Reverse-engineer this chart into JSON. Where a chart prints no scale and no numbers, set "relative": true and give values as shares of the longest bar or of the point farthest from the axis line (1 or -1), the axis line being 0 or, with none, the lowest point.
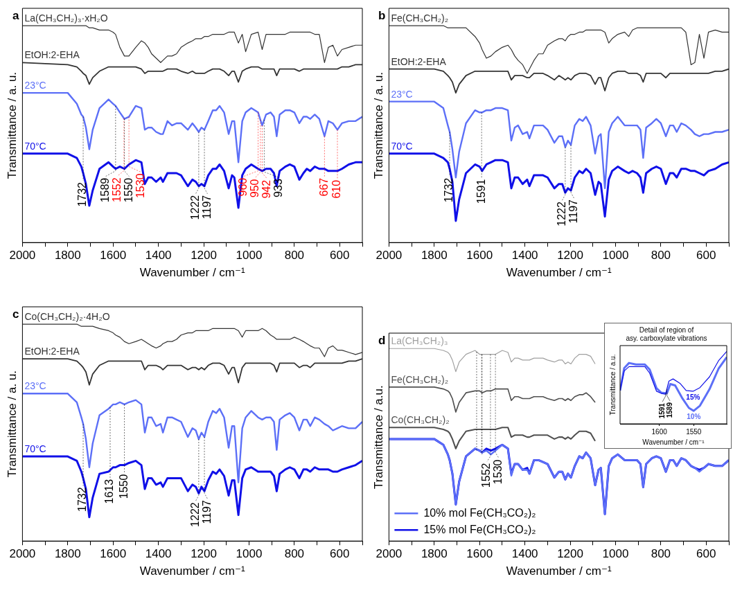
{
  "chart_data": [
    {
      "type": "line",
      "title": "a",
      "xlabel": "Wavenumber / cm⁻¹",
      "ylabel": "Transmittance / a. u.",
      "relative": true,
      "xlim": [
        2000,
        500
      ],
      "xticks": [
        2000,
        {
          "value": 1900,
          "label": null
        },
        1800,
        {
          "value": 1700,
          "label": null
        },
        1600,
        {
          "value": 1500,
          "label": null
        },
        1400,
        {
          "value": 1300,
          "label": null
        },
        1200,
        {
          "value": 1100,
          "label": null
        },
        1000,
        {
          "value": 900,
          "label": null
        },
        800,
        {
          "value": 700,
          "label": null
        },
        600,
        {
          "value": 500,
          "label": null
        }
      ],
      "x": [
        2000,
        1800,
        1760,
        1740,
        1732,
        1720,
        1705,
        1690,
        1660,
        1620,
        1600,
        1589,
        1570,
        1550,
        1530,
        1500,
        1475,
        1460,
        1445,
        1430,
        1410,
        1390,
        1380,
        1360,
        1340,
        1320,
        1300,
        1270,
        1250,
        1235,
        1222,
        1210,
        1197,
        1180,
        1160,
        1145,
        1130,
        1110,
        1090,
        1075,
        1065,
        1047,
        1030,
        1015,
        990,
        960,
        942,
        925,
        905,
        890,
        878,
        865,
        840,
        820,
        800,
        778,
        760,
        745,
        730,
        710,
        690,
        667,
        650,
        630,
        610,
        590,
        560,
        530,
        500
      ],
      "series": [
        {
          "name": "La(CH₃CH₂)₃·xH₂O",
          "color": "#333333",
          "values": [
            1.0,
            1.0,
            1.0,
            1.0,
            1.0,
            1.0,
            0.99,
            0.99,
            0.98,
            0.98,
            0.97,
            0.96,
            0.9,
            0.86,
            0.86,
            0.9,
            0.93,
            0.92,
            0.9,
            0.87,
            0.85,
            0.83,
            0.84,
            0.86,
            0.86,
            0.87,
            0.9,
            0.92,
            0.93,
            0.94,
            0.94,
            0.94,
            0.95,
            0.95,
            0.96,
            0.96,
            0.96,
            0.96,
            0.97,
            0.97,
            0.97,
            0.92,
            0.96,
            0.88,
            0.96,
            0.97,
            0.89,
            0.96,
            0.96,
            0.96,
            0.96,
            0.96,
            0.96,
            0.97,
            0.97,
            0.97,
            0.97,
            0.97,
            0.97,
            0.96,
            0.96,
            0.83,
            0.9,
            0.91,
            0.86,
            0.89,
            0.9,
            0.91,
            0.91
          ]
        },
        {
          "name": "EtOH:2-EHA",
          "color": "#333333",
          "values": [
            0.83,
            0.82,
            0.81,
            0.79,
            0.78,
            0.77,
            0.73,
            0.76,
            0.79,
            0.81,
            0.81,
            0.81,
            0.81,
            0.81,
            0.81,
            0.81,
            0.8,
            0.78,
            0.79,
            0.79,
            0.79,
            0.79,
            0.79,
            0.8,
            0.8,
            0.8,
            0.79,
            0.78,
            0.79,
            0.78,
            0.78,
            0.78,
            0.78,
            0.79,
            0.8,
            0.8,
            0.8,
            0.79,
            0.77,
            0.79,
            0.79,
            0.74,
            0.79,
            0.8,
            0.81,
            0.81,
            0.8,
            0.8,
            0.8,
            0.8,
            0.77,
            0.8,
            0.8,
            0.8,
            0.8,
            0.79,
            0.8,
            0.8,
            0.8,
            0.8,
            0.8,
            0.8,
            0.8,
            0.8,
            0.8,
            0.81,
            0.81,
            0.82,
            0.82
          ]
        },
        {
          "name": "23°C",
          "color": "#5c6ff7",
          "values": [
            0.69,
            0.69,
            0.64,
            0.59,
            0.58,
            0.53,
            0.43,
            0.52,
            0.62,
            0.66,
            0.64,
            0.63,
            0.6,
            0.57,
            0.58,
            0.63,
            0.62,
            0.52,
            0.53,
            0.53,
            0.51,
            0.5,
            0.5,
            0.56,
            0.54,
            0.55,
            0.55,
            0.52,
            0.55,
            0.53,
            0.51,
            0.53,
            0.52,
            0.56,
            0.61,
            0.61,
            0.63,
            0.6,
            0.5,
            0.56,
            0.56,
            0.37,
            0.56,
            0.6,
            0.62,
            0.6,
            0.54,
            0.59,
            0.6,
            0.58,
            0.49,
            0.59,
            0.61,
            0.61,
            0.6,
            0.55,
            0.58,
            0.58,
            0.57,
            0.59,
            0.57,
            0.49,
            0.56,
            0.55,
            0.52,
            0.55,
            0.56,
            0.56,
            0.58
          ]
        },
        {
          "name": "70°C",
          "color": "#1010e8",
          "values": [
            0.41,
            0.41,
            0.39,
            0.35,
            0.32,
            0.27,
            0.17,
            0.24,
            0.34,
            0.37,
            0.35,
            0.34,
            0.35,
            0.34,
            0.36,
            0.38,
            0.37,
            0.27,
            0.3,
            0.3,
            0.28,
            0.3,
            0.28,
            0.32,
            0.32,
            0.32,
            0.31,
            0.26,
            0.29,
            0.28,
            0.26,
            0.27,
            0.26,
            0.31,
            0.34,
            0.34,
            0.36,
            0.33,
            0.25,
            0.31,
            0.3,
            0.16,
            0.31,
            0.34,
            0.36,
            0.34,
            0.33,
            0.34,
            0.34,
            0.32,
            0.26,
            0.33,
            0.35,
            0.36,
            0.35,
            0.29,
            0.32,
            0.34,
            0.33,
            0.35,
            0.34,
            0.34,
            0.33,
            0.33,
            0.33,
            0.34,
            0.36,
            0.37,
            0.37
          ]
        }
      ],
      "ref_lines": [
        {
          "axis": "x",
          "value": 1732,
          "label": "1732",
          "color": "#000000",
          "line_style": "dotted"
        },
        {
          "axis": "x",
          "value": 1589,
          "label": "1589",
          "color": "#000000",
          "line_style": "dotted"
        },
        {
          "axis": "x",
          "value": 1552,
          "label": "1552",
          "color": "#ff0000",
          "line_style": "dotted"
        },
        {
          "axis": "x",
          "value": 1550,
          "label": "1550",
          "color": "#000000",
          "line_style": "dotted"
        },
        {
          "axis": "x",
          "value": 1530,
          "label": "1530",
          "color": "#ff0000",
          "line_style": "dotted"
        },
        {
          "axis": "x",
          "value": 1222,
          "label": "1222",
          "color": "#000000",
          "line_style": "dotted"
        },
        {
          "axis": "x",
          "value": 1197,
          "label": "1197",
          "color": "#000000",
          "line_style": "dotted"
        },
        {
          "axis": "x",
          "value": 960,
          "label": "960",
          "color": "#ff0000",
          "line_style": "dotted"
        },
        {
          "axis": "x",
          "value": 950,
          "label": "950",
          "color": "#ff0000",
          "line_style": "dotted"
        },
        {
          "axis": "x",
          "value": 942,
          "label": "942",
          "color": "#ff0000",
          "line_style": "dotted"
        },
        {
          "axis": "x",
          "value": 933,
          "label": "933",
          "color": "#000000",
          "line_style": "dotted"
        },
        {
          "axis": "x",
          "value": 667,
          "label": "667",
          "color": "#ff0000",
          "line_style": "dotted"
        },
        {
          "axis": "x",
          "value": 610,
          "label": "610",
          "color": "#ff0000",
          "line_style": "dotted"
        }
      ]
    },
    {
      "type": "line",
      "title": "b",
      "xlabel": "Wavenumber / cm⁻¹",
      "ylabel": "Transmittance / a. u.",
      "relative": true,
      "xlim": [
        2000,
        500
      ],
      "xticks": [
        2000,
        {
          "value": 1900,
          "label": null
        },
        1800,
        {
          "value": 1700,
          "label": null
        },
        1600,
        {
          "value": 1500,
          "label": null
        },
        1400,
        {
          "value": 1300,
          "label": null
        },
        1200,
        {
          "value": 1100,
          "label": null
        },
        1000,
        {
          "value": 900,
          "label": null
        },
        800,
        {
          "value": 700,
          "label": null
        },
        600,
        {
          "value": 500,
          "label": null
        }
      ],
      "x": [
        2000,
        1800,
        1760,
        1740,
        1732,
        1720,
        1705,
        1690,
        1660,
        1620,
        1600,
        1589,
        1570,
        1550,
        1530,
        1500,
        1475,
        1460,
        1445,
        1430,
        1410,
        1390,
        1380,
        1360,
        1340,
        1320,
        1300,
        1270,
        1250,
        1235,
        1222,
        1210,
        1197,
        1180,
        1160,
        1145,
        1130,
        1110,
        1090,
        1075,
        1065,
        1047,
        1030,
        1015,
        990,
        960,
        942,
        925,
        905,
        890,
        878,
        865,
        840,
        820,
        800,
        778,
        760,
        745,
        730,
        710,
        690,
        667,
        650,
        630,
        610,
        590,
        560,
        530,
        500
      ],
      "series": [
        {
          "name": "Fe(CH₃CH₂)₂",
          "color": "#333333",
          "values": [
            1.0,
            1.0,
            1.0,
            0.99,
            0.99,
            0.99,
            0.99,
            0.99,
            0.99,
            0.95,
            0.92,
            0.89,
            0.85,
            0.86,
            0.88,
            0.9,
            0.91,
            0.89,
            0.86,
            0.84,
            0.82,
            0.78,
            0.8,
            0.84,
            0.87,
            0.87,
            0.91,
            0.93,
            0.94,
            0.94,
            0.93,
            0.95,
            0.96,
            0.96,
            0.97,
            0.97,
            0.98,
            0.98,
            0.98,
            0.98,
            0.98,
            0.97,
            0.92,
            0.94,
            0.96,
            0.97,
            0.95,
            0.98,
            0.99,
            0.99,
            0.99,
            0.99,
            0.99,
            0.99,
            0.99,
            0.99,
            0.99,
            0.99,
            0.99,
            0.99,
            0.97,
            0.82,
            0.83,
            0.96,
            0.85,
            0.97,
            0.98,
            0.97,
            0.97
          ]
        },
        {
          "name": "EtOH:2-EHA",
          "color": "#333333",
          "values": [
            0.8,
            0.8,
            0.79,
            0.77,
            0.76,
            0.74,
            0.69,
            0.73,
            0.77,
            0.79,
            0.79,
            0.79,
            0.79,
            0.79,
            0.79,
            0.79,
            0.79,
            0.75,
            0.77,
            0.77,
            0.77,
            0.76,
            0.76,
            0.78,
            0.78,
            0.78,
            0.77,
            0.75,
            0.77,
            0.76,
            0.75,
            0.76,
            0.75,
            0.77,
            0.78,
            0.78,
            0.78,
            0.77,
            0.73,
            0.76,
            0.76,
            0.7,
            0.76,
            0.78,
            0.79,
            0.79,
            0.78,
            0.78,
            0.78,
            0.77,
            0.74,
            0.78,
            0.78,
            0.78,
            0.78,
            0.76,
            0.78,
            0.78,
            0.78,
            0.78,
            0.78,
            0.78,
            0.78,
            0.78,
            0.78,
            0.78,
            0.79,
            0.79,
            0.8
          ]
        },
        {
          "name": "23°C",
          "color": "#5c6ff7",
          "values": [
            0.65,
            0.65,
            0.62,
            0.54,
            0.51,
            0.43,
            0.3,
            0.42,
            0.55,
            0.61,
            0.6,
            0.6,
            0.61,
            0.61,
            0.62,
            0.62,
            0.61,
            0.47,
            0.53,
            0.54,
            0.5,
            0.51,
            0.48,
            0.54,
            0.54,
            0.54,
            0.52,
            0.46,
            0.49,
            0.49,
            0.44,
            0.47,
            0.45,
            0.54,
            0.57,
            0.56,
            0.58,
            0.54,
            0.41,
            0.49,
            0.5,
            0.25,
            0.51,
            0.55,
            0.58,
            0.54,
            0.54,
            0.54,
            0.54,
            0.52,
            0.39,
            0.53,
            0.55,
            0.57,
            0.55,
            0.49,
            0.54,
            0.54,
            0.51,
            0.55,
            0.54,
            0.52,
            0.5,
            0.49,
            0.5,
            0.5,
            0.51,
            0.51,
            0.52
          ]
        },
        {
          "name": "70°C",
          "color": "#1010e8",
          "values": [
            0.41,
            0.41,
            0.39,
            0.37,
            0.34,
            0.28,
            0.1,
            0.2,
            0.32,
            0.36,
            0.35,
            0.33,
            0.36,
            0.37,
            0.38,
            0.38,
            0.37,
            0.25,
            0.3,
            0.3,
            0.27,
            0.29,
            0.26,
            0.31,
            0.31,
            0.31,
            0.3,
            0.25,
            0.27,
            0.27,
            0.23,
            0.25,
            0.24,
            0.3,
            0.33,
            0.32,
            0.34,
            0.32,
            0.22,
            0.28,
            0.27,
            0.12,
            0.29,
            0.33,
            0.35,
            0.33,
            0.32,
            0.33,
            0.32,
            0.3,
            0.23,
            0.32,
            0.34,
            0.35,
            0.34,
            0.27,
            0.32,
            0.32,
            0.3,
            0.34,
            0.34,
            0.33,
            0.33,
            0.32,
            0.31,
            0.33,
            0.34,
            0.36,
            0.37
          ]
        }
      ],
      "ref_lines": [
        {
          "axis": "x",
          "value": 1732,
          "label": "1732",
          "color": "#000000",
          "line_style": "dotted"
        },
        {
          "axis": "x",
          "value": 1591,
          "label": "1591",
          "color": "#000000",
          "line_style": "dotted"
        },
        {
          "axis": "x",
          "value": 1222,
          "label": "1222",
          "color": "#000000",
          "line_style": "dotted"
        },
        {
          "axis": "x",
          "value": 1197,
          "label": "1197",
          "color": "#000000",
          "line_style": "dotted"
        }
      ]
    },
    {
      "type": "line",
      "title": "c",
      "xlabel": "Wavenumber / cm⁻¹",
      "ylabel": "Transmittance / a. u.",
      "relative": true,
      "xlim": [
        2000,
        500
      ],
      "xticks": [
        2000,
        {
          "value": 1900,
          "label": null
        },
        1800,
        {
          "value": 1700,
          "label": null
        },
        1600,
        {
          "value": 1500,
          "label": null
        },
        1400,
        {
          "value": 1300,
          "label": null
        },
        1200,
        {
          "value": 1100,
          "label": null
        },
        1000,
        {
          "value": 900,
          "label": null
        },
        800,
        {
          "value": 700,
          "label": null
        },
        600,
        {
          "value": 500,
          "label": null
        }
      ],
      "x": [
        2000,
        1800,
        1760,
        1740,
        1732,
        1720,
        1705,
        1690,
        1660,
        1620,
        1600,
        1589,
        1570,
        1550,
        1530,
        1500,
        1475,
        1460,
        1445,
        1430,
        1410,
        1390,
        1380,
        1360,
        1340,
        1320,
        1300,
        1270,
        1250,
        1235,
        1222,
        1210,
        1197,
        1180,
        1160,
        1145,
        1130,
        1110,
        1090,
        1075,
        1065,
        1047,
        1030,
        1015,
        990,
        960,
        942,
        925,
        905,
        890,
        878,
        865,
        840,
        820,
        800,
        778,
        760,
        745,
        730,
        710,
        690,
        667,
        650,
        630,
        610,
        590,
        560,
        530,
        500
      ],
      "series": [
        {
          "name": "Co(CH₃CH₂)₂·4H₂O",
          "color": "#333333",
          "values": [
            1.0,
            1.0,
            1.0,
            0.99,
            0.99,
            0.99,
            0.99,
            0.99,
            0.98,
            0.97,
            0.96,
            0.95,
            0.94,
            0.92,
            0.91,
            0.92,
            0.93,
            0.92,
            0.91,
            0.9,
            0.89,
            0.9,
            0.91,
            0.92,
            0.92,
            0.93,
            0.95,
            0.96,
            0.96,
            0.97,
            0.97,
            0.97,
            0.97,
            0.97,
            0.98,
            0.98,
            0.98,
            0.98,
            0.98,
            0.98,
            0.98,
            0.97,
            0.94,
            0.97,
            0.97,
            0.97,
            0.98,
            0.97,
            0.95,
            0.94,
            0.93,
            0.93,
            0.93,
            0.93,
            0.94,
            0.93,
            0.92,
            0.91,
            0.9,
            0.89,
            0.89,
            0.85,
            0.89,
            0.9,
            0.88,
            0.88,
            0.87,
            0.86,
            0.87
          ]
        },
        {
          "name": "EtOH:2-EHA",
          "color": "#333333",
          "values": [
            0.84,
            0.84,
            0.83,
            0.81,
            0.8,
            0.78,
            0.72,
            0.77,
            0.81,
            0.83,
            0.83,
            0.83,
            0.83,
            0.83,
            0.83,
            0.83,
            0.83,
            0.79,
            0.81,
            0.81,
            0.81,
            0.8,
            0.79,
            0.81,
            0.81,
            0.81,
            0.81,
            0.79,
            0.8,
            0.8,
            0.79,
            0.8,
            0.79,
            0.81,
            0.82,
            0.82,
            0.82,
            0.81,
            0.77,
            0.8,
            0.8,
            0.73,
            0.8,
            0.82,
            0.82,
            0.82,
            0.82,
            0.82,
            0.82,
            0.81,
            0.78,
            0.82,
            0.82,
            0.82,
            0.82,
            0.8,
            0.81,
            0.81,
            0.8,
            0.82,
            0.82,
            0.82,
            0.82,
            0.82,
            0.82,
            0.82,
            0.83,
            0.83,
            0.84
          ]
        },
        {
          "name": "23°C",
          "color": "#5c6ff7",
          "values": [
            0.68,
            0.68,
            0.64,
            0.57,
            0.54,
            0.47,
            0.34,
            0.45,
            0.58,
            0.61,
            0.63,
            0.63,
            0.64,
            0.63,
            0.64,
            0.65,
            0.63,
            0.5,
            0.57,
            0.57,
            0.53,
            0.54,
            0.5,
            0.57,
            0.57,
            0.56,
            0.55,
            0.48,
            0.52,
            0.51,
            0.47,
            0.5,
            0.48,
            0.55,
            0.6,
            0.59,
            0.61,
            0.57,
            0.43,
            0.53,
            0.53,
            0.27,
            0.52,
            0.57,
            0.6,
            0.57,
            0.56,
            0.57,
            0.57,
            0.55,
            0.42,
            0.56,
            0.58,
            0.59,
            0.57,
            0.51,
            0.56,
            0.56,
            0.53,
            0.57,
            0.56,
            0.54,
            0.53,
            0.51,
            0.52,
            0.53,
            0.52,
            0.52,
            0.55
          ]
        },
        {
          "name": "70°C",
          "color": "#1010e8",
          "values": [
            0.39,
            0.39,
            0.37,
            0.32,
            0.29,
            0.24,
            0.11,
            0.2,
            0.31,
            0.32,
            0.34,
            0.34,
            0.35,
            0.35,
            0.36,
            0.37,
            0.35,
            0.24,
            0.29,
            0.29,
            0.26,
            0.27,
            0.25,
            0.29,
            0.29,
            0.29,
            0.29,
            0.23,
            0.26,
            0.25,
            0.22,
            0.25,
            0.23,
            0.28,
            0.32,
            0.31,
            0.33,
            0.3,
            0.21,
            0.28,
            0.28,
            0.12,
            0.29,
            0.33,
            0.34,
            0.32,
            0.32,
            0.32,
            0.32,
            0.3,
            0.23,
            0.31,
            0.33,
            0.34,
            0.33,
            0.29,
            0.33,
            0.33,
            0.32,
            0.34,
            0.33,
            0.33,
            0.33,
            0.32,
            0.32,
            0.33,
            0.34,
            0.35,
            0.37
          ]
        }
      ],
      "ref_lines": [
        {
          "axis": "x",
          "value": 1732,
          "label": "1732",
          "color": "#000000",
          "line_style": "dotted"
        },
        {
          "axis": "x",
          "value": 1613,
          "label": "1613",
          "color": "#000000",
          "line_style": "dotted"
        },
        {
          "axis": "x",
          "value": 1550,
          "label": "1550",
          "color": "#000000",
          "line_style": "dotted"
        },
        {
          "axis": "x",
          "value": 1222,
          "label": "1222",
          "color": "#000000",
          "line_style": "dotted"
        },
        {
          "axis": "x",
          "value": 1197,
          "label": "1197",
          "color": "#000000",
          "line_style": "dotted"
        }
      ]
    },
    {
      "type": "line",
      "title": "d",
      "xlabel": "Wavenumber / cm⁻¹",
      "ylabel": "Transmittance / a.u.",
      "relative": true,
      "xlim": [
        2000,
        500
      ],
      "legend": "bottom left",
      "xticks": [
        2000,
        {
          "value": 1900,
          "label": null
        },
        1800,
        {
          "value": 1700,
          "label": null
        },
        1600,
        {
          "value": 1500,
          "label": null
        },
        1400,
        {
          "value": 1300,
          "label": null
        },
        1200,
        {
          "value": 1100,
          "label": null
        },
        1000,
        {
          "value": 900,
          "label": null
        },
        800,
        {
          "value": 700,
          "label": null
        },
        600,
        {
          "value": 500,
          "label": null
        }
      ],
      "x": [
        2000,
        1800,
        1760,
        1740,
        1732,
        1720,
        1705,
        1690,
        1660,
        1620,
        1600,
        1589,
        1570,
        1550,
        1530,
        1500,
        1475,
        1460,
        1445,
        1430,
        1410,
        1390,
        1380,
        1360,
        1340,
        1320,
        1300,
        1270,
        1250,
        1235,
        1222,
        1210,
        1197,
        1180,
        1160,
        1145,
        1130,
        1110,
        1090,
        1075,
        1065,
        1047,
        1030,
        1015,
        990,
        960,
        942,
        925,
        905,
        890,
        878,
        865,
        840,
        820,
        800,
        778,
        760,
        745,
        730,
        710,
        690,
        667,
        650,
        630,
        610,
        590,
        560,
        530,
        500
      ],
      "series": [
        {
          "name": "La(CH₃CH₂)₃",
          "color": "#a0a0a0",
          "values": [
            1.0,
            1.0,
            0.99,
            0.98,
            0.97,
            0.94,
            0.88,
            0.93,
            0.97,
            0.99,
            0.97,
            0.97,
            0.97,
            0.97,
            0.97,
            0.99,
            0.98,
            0.93,
            0.95,
            0.95,
            0.94,
            0.94,
            0.94,
            0.95,
            0.95,
            0.95,
            0.94,
            0.93,
            0.94,
            0.94,
            0.92,
            0.93,
            0.92,
            0.95,
            0.97,
            0.97,
            0.97,
            0.96,
            0.92,
            null,
            null,
            null,
            null,
            null,
            null,
            null,
            null,
            null,
            null,
            null,
            null,
            null,
            null,
            null,
            null,
            null,
            null,
            null,
            null,
            null,
            null,
            null,
            null,
            null,
            null,
            null,
            null,
            null,
            null
          ]
        },
        {
          "name": "Fe(CH₃CH₂)₂",
          "color": "#505050",
          "values": [
            0.8,
            0.8,
            0.79,
            0.78,
            0.77,
            0.74,
            0.67,
            0.72,
            0.77,
            0.78,
            0.78,
            0.77,
            0.78,
            0.78,
            0.79,
            0.79,
            0.79,
            0.73,
            0.75,
            0.75,
            0.74,
            0.74,
            0.74,
            0.75,
            0.75,
            0.75,
            0.74,
            0.73,
            0.74,
            0.74,
            0.73,
            0.74,
            0.73,
            0.75,
            0.76,
            0.76,
            0.77,
            0.75,
            0.72,
            null,
            null,
            null,
            null,
            null,
            null,
            null,
            null,
            null,
            null,
            null,
            null,
            null,
            null,
            null,
            null,
            null,
            null,
            null,
            null,
            null,
            null,
            null,
            null,
            null,
            null,
            null,
            null,
            null,
            null
          ]
        },
        {
          "name": "Co(CH₃CH₂)₂",
          "color": "#505050",
          "values": [
            0.59,
            0.59,
            0.58,
            0.57,
            0.56,
            0.53,
            0.48,
            0.52,
            0.57,
            0.58,
            0.58,
            0.58,
            0.58,
            0.58,
            0.58,
            0.59,
            0.59,
            0.54,
            0.55,
            0.55,
            0.55,
            0.54,
            0.54,
            0.55,
            0.55,
            0.55,
            0.55,
            0.53,
            0.54,
            0.54,
            0.53,
            0.54,
            0.53,
            0.55,
            0.57,
            0.57,
            0.57,
            0.56,
            0.52,
            null,
            null,
            null,
            null,
            null,
            null,
            null,
            null,
            null,
            null,
            null,
            null,
            null,
            null,
            null,
            null,
            null,
            null,
            null,
            null,
            null,
            null,
            null,
            null,
            null,
            null,
            null,
            null,
            null,
            null
          ]
        },
        {
          "name": "10% mol Fe(CH₃CO₂)₂",
          "color": "#5c6ff7",
          "values": [
            0.53,
            0.53,
            0.5,
            0.45,
            0.42,
            0.35,
            0.19,
            0.31,
            0.44,
            0.48,
            0.47,
            0.46,
            0.47,
            0.45,
            0.47,
            0.5,
            0.48,
            0.34,
            0.4,
            0.4,
            0.37,
            0.37,
            0.35,
            0.42,
            0.42,
            0.41,
            0.4,
            0.33,
            0.36,
            0.36,
            0.32,
            0.35,
            0.33,
            0.39,
            0.44,
            0.43,
            0.46,
            0.43,
            0.29,
            0.37,
            0.38,
            0.14,
            0.39,
            0.43,
            0.45,
            0.42,
            0.42,
            0.42,
            0.42,
            0.4,
            0.28,
            0.4,
            0.43,
            0.44,
            0.43,
            0.36,
            0.42,
            0.42,
            0.39,
            0.43,
            0.42,
            0.39,
            0.38,
            0.36,
            0.38,
            0.4,
            0.39,
            0.39,
            0.42
          ]
        },
        {
          "name": "15% mol Fe(CH₃CO₂)₂",
          "color": "#1010e8",
          "values": [
            0.53,
            0.53,
            0.5,
            0.45,
            0.42,
            0.35,
            0.19,
            0.31,
            0.44,
            0.48,
            0.47,
            0.46,
            0.48,
            0.47,
            0.48,
            0.5,
            0.48,
            0.35,
            0.4,
            0.4,
            0.37,
            0.38,
            0.35,
            0.42,
            0.42,
            0.41,
            0.4,
            0.33,
            0.36,
            0.36,
            0.32,
            0.35,
            0.33,
            0.39,
            0.44,
            0.43,
            0.46,
            0.43,
            0.29,
            0.37,
            0.38,
            0.14,
            0.39,
            0.43,
            0.45,
            0.42,
            0.42,
            0.42,
            0.42,
            0.4,
            0.28,
            0.4,
            0.43,
            0.44,
            0.43,
            0.36,
            0.42,
            0.42,
            0.39,
            0.43,
            0.42,
            0.39,
            0.38,
            0.37,
            0.38,
            0.4,
            0.39,
            0.39,
            0.42
          ]
        }
      ],
      "ref_lines": [
        {
          "axis": "x",
          "value": 1613,
          "label": null,
          "color": "#000000",
          "line_style": "dotted"
        },
        {
          "axis": "x",
          "value": 1591,
          "label": null,
          "color": "#000000",
          "line_style": "dotted"
        },
        {
          "axis": "x",
          "value": 1589,
          "label": null,
          "color": "#000000",
          "line_style": "dotted"
        },
        {
          "axis": "x",
          "value": 1552,
          "label": "1552",
          "color": "#000000",
          "line_style": "dotted"
        },
        {
          "axis": "x",
          "value": 1530,
          "label": "1530",
          "color": "#000000",
          "line_style": "dotted"
        }
      ]
    },
    {
      "type": "line",
      "title": "Detail of region of\nasy. carboxylate vibrations",
      "xlabel": "Wavenumber / cm⁻¹",
      "ylabel": "Transmittance / a.u.",
      "relative": true,
      "xlim": [
        1657,
        1502
      ],
      "xticks": [
        1600,
        1550
      ],
      "series": [
        {
          "name": "15%",
          "color": "#1010e8",
          "x": [
            1657,
            1651,
            1644,
            1634,
            1621,
            1614,
            1604,
            1597,
            1591,
            1586,
            1580,
            1570,
            1561,
            1551,
            1541,
            1527,
            1514,
            1502
          ],
          "values": [
            0.46,
            0.73,
            0.79,
            0.79,
            0.79,
            0.7,
            0.45,
            0.42,
            0.41,
            0.59,
            0.62,
            0.56,
            0.46,
            0.45,
            0.5,
            0.65,
            0.87,
            1.0
          ]
        },
        {
          "name": "10%",
          "color": "#5c6ff7",
          "x": [
            1657,
            1651,
            1644,
            1634,
            1621,
            1614,
            1604,
            1597,
            1589,
            1584,
            1577,
            1567,
            1557,
            1550,
            1541,
            1527,
            1514,
            1502
          ],
          "values": [
            0.46,
            0.77,
            0.84,
            0.82,
            0.82,
            0.75,
            0.49,
            0.43,
            0.42,
            0.55,
            0.53,
            0.36,
            0.22,
            0.18,
            0.25,
            0.48,
            0.76,
            0.92
          ]
        }
      ],
      "ref_lines": [
        {
          "axis": "x",
          "value": 1591,
          "label": "1591",
          "color": "#000000",
          "line_style": "solid"
        },
        {
          "axis": "x",
          "value": 1589,
          "label": "1589",
          "color": "#000000",
          "line_style": "solid"
        }
      ]
    }
  ]
}
